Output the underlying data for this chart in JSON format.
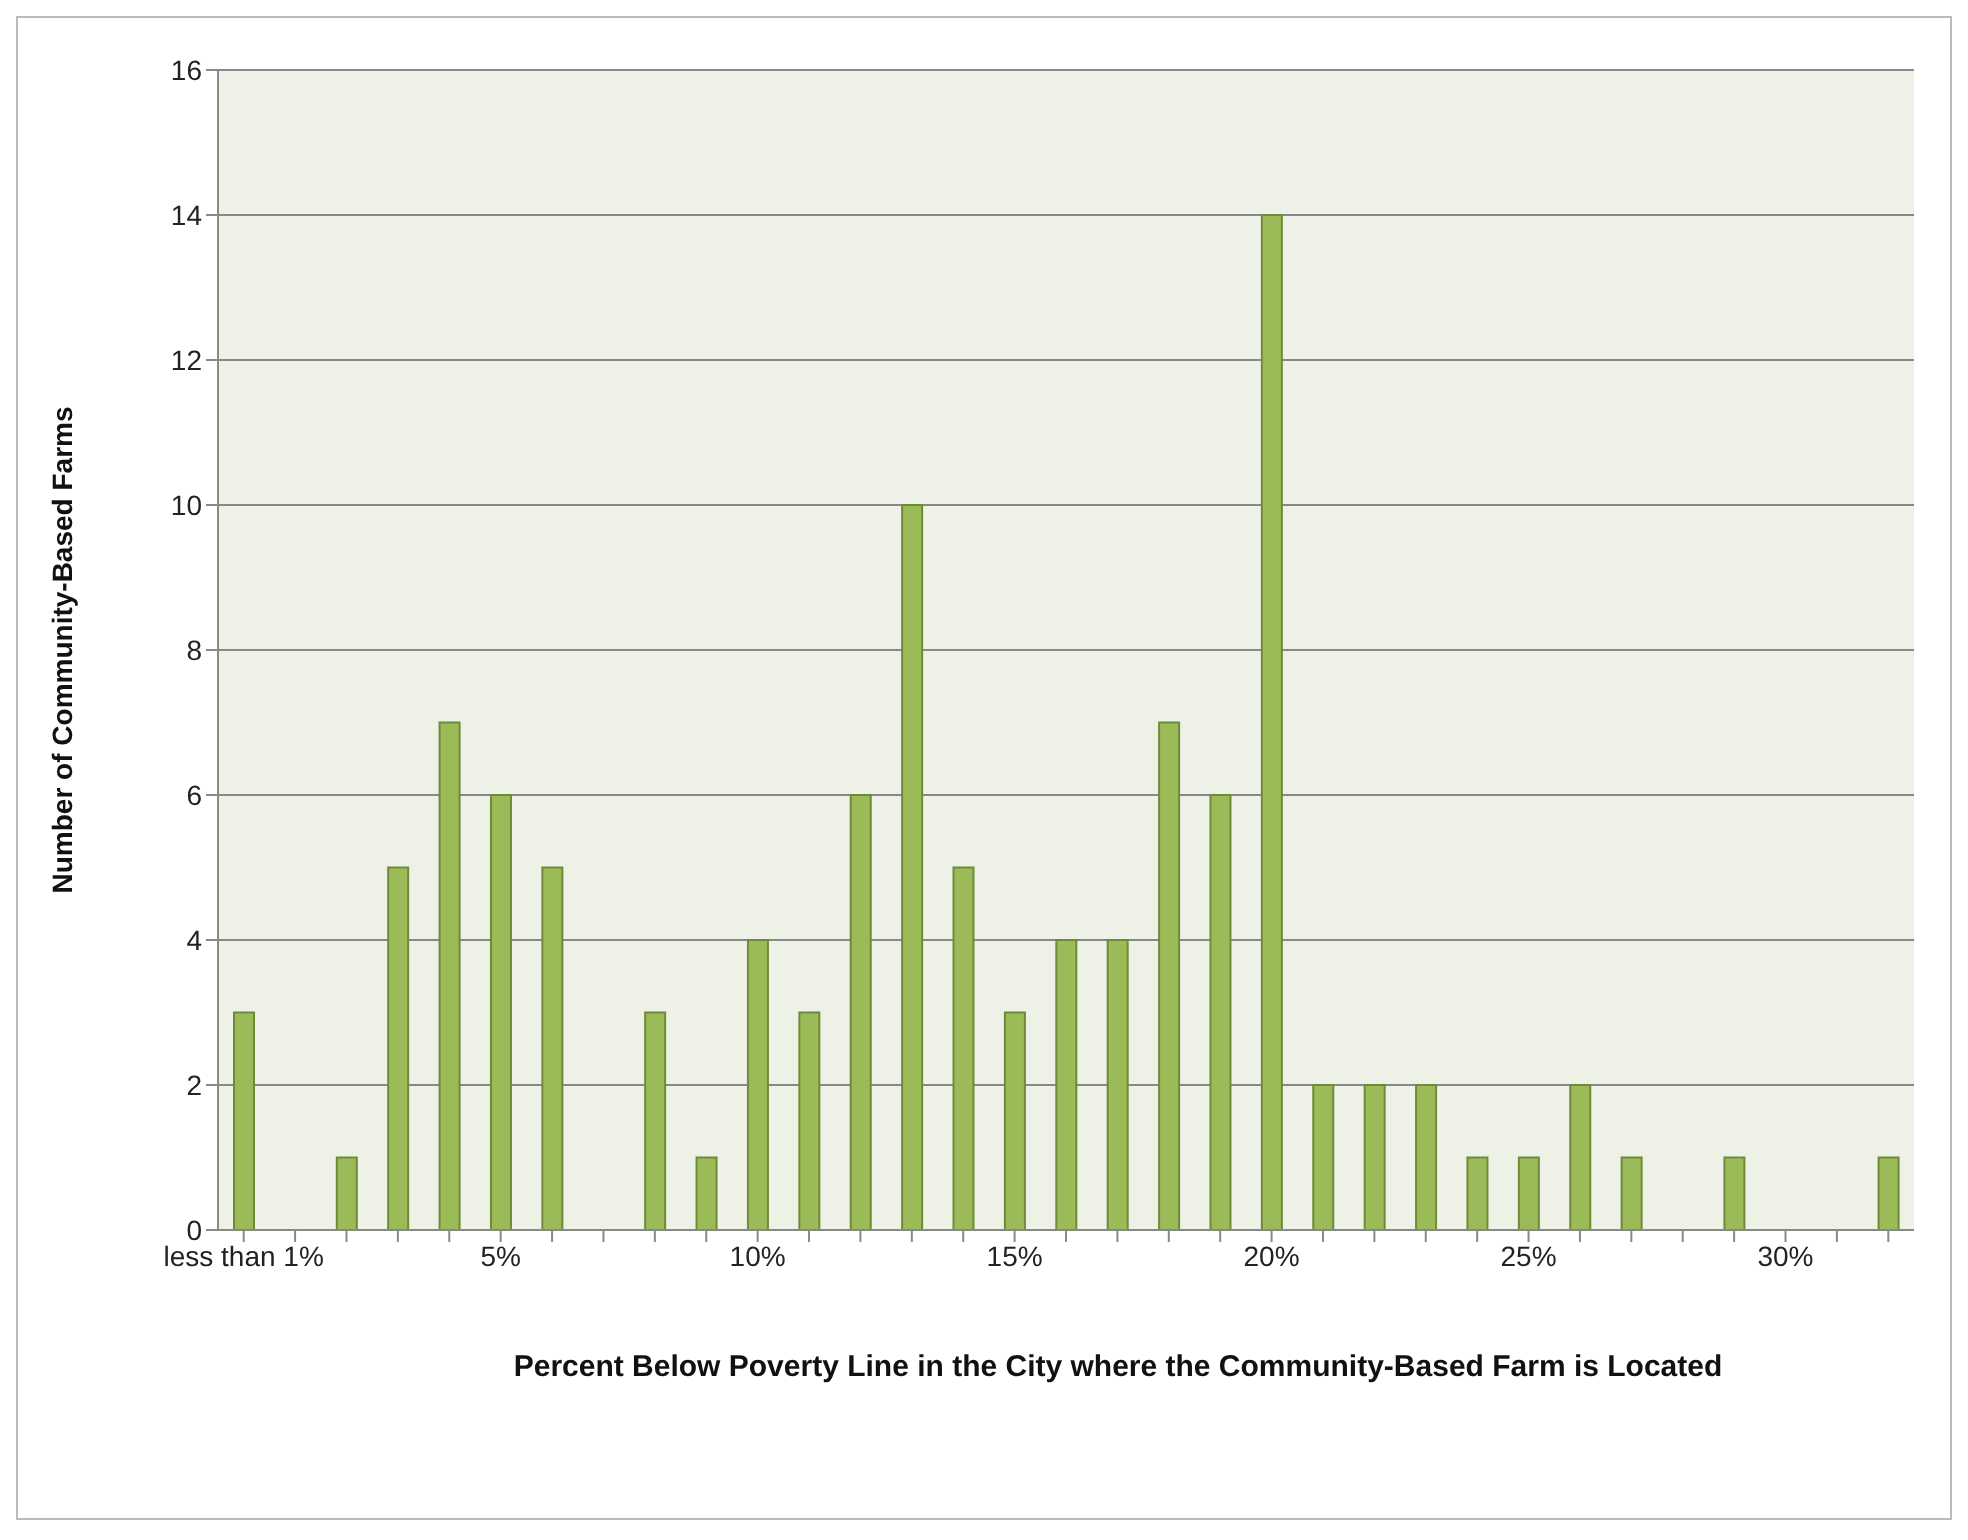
{
  "chart_data": {
    "type": "bar",
    "xlabel": "Percent Below Poverty Line in the City where the Community-Based Farm is Located",
    "ylabel": "Number of Community-Based Farms",
    "categories": [
      "less than 1%",
      null,
      null,
      null,
      null,
      "5%",
      null,
      null,
      null,
      null,
      "10%",
      null,
      null,
      null,
      null,
      "15%",
      null,
      null,
      null,
      null,
      "20%",
      null,
      null,
      null,
      null,
      "25%",
      null,
      null,
      null,
      null,
      "30%",
      null,
      null
    ],
    "values": [
      3,
      0,
      1,
      5,
      7,
      6,
      5,
      0,
      3,
      1,
      4,
      3,
      6,
      10,
      5,
      3,
      4,
      4,
      7,
      6,
      14,
      2,
      2,
      2,
      1,
      1,
      2,
      1,
      0,
      1,
      0,
      0,
      1
    ],
    "color": "#9bbb59",
    "ylim": [
      0,
      16
    ],
    "yticks": [
      0,
      2,
      4,
      6,
      8,
      10,
      12,
      14,
      16
    ],
    "grid": "y"
  }
}
